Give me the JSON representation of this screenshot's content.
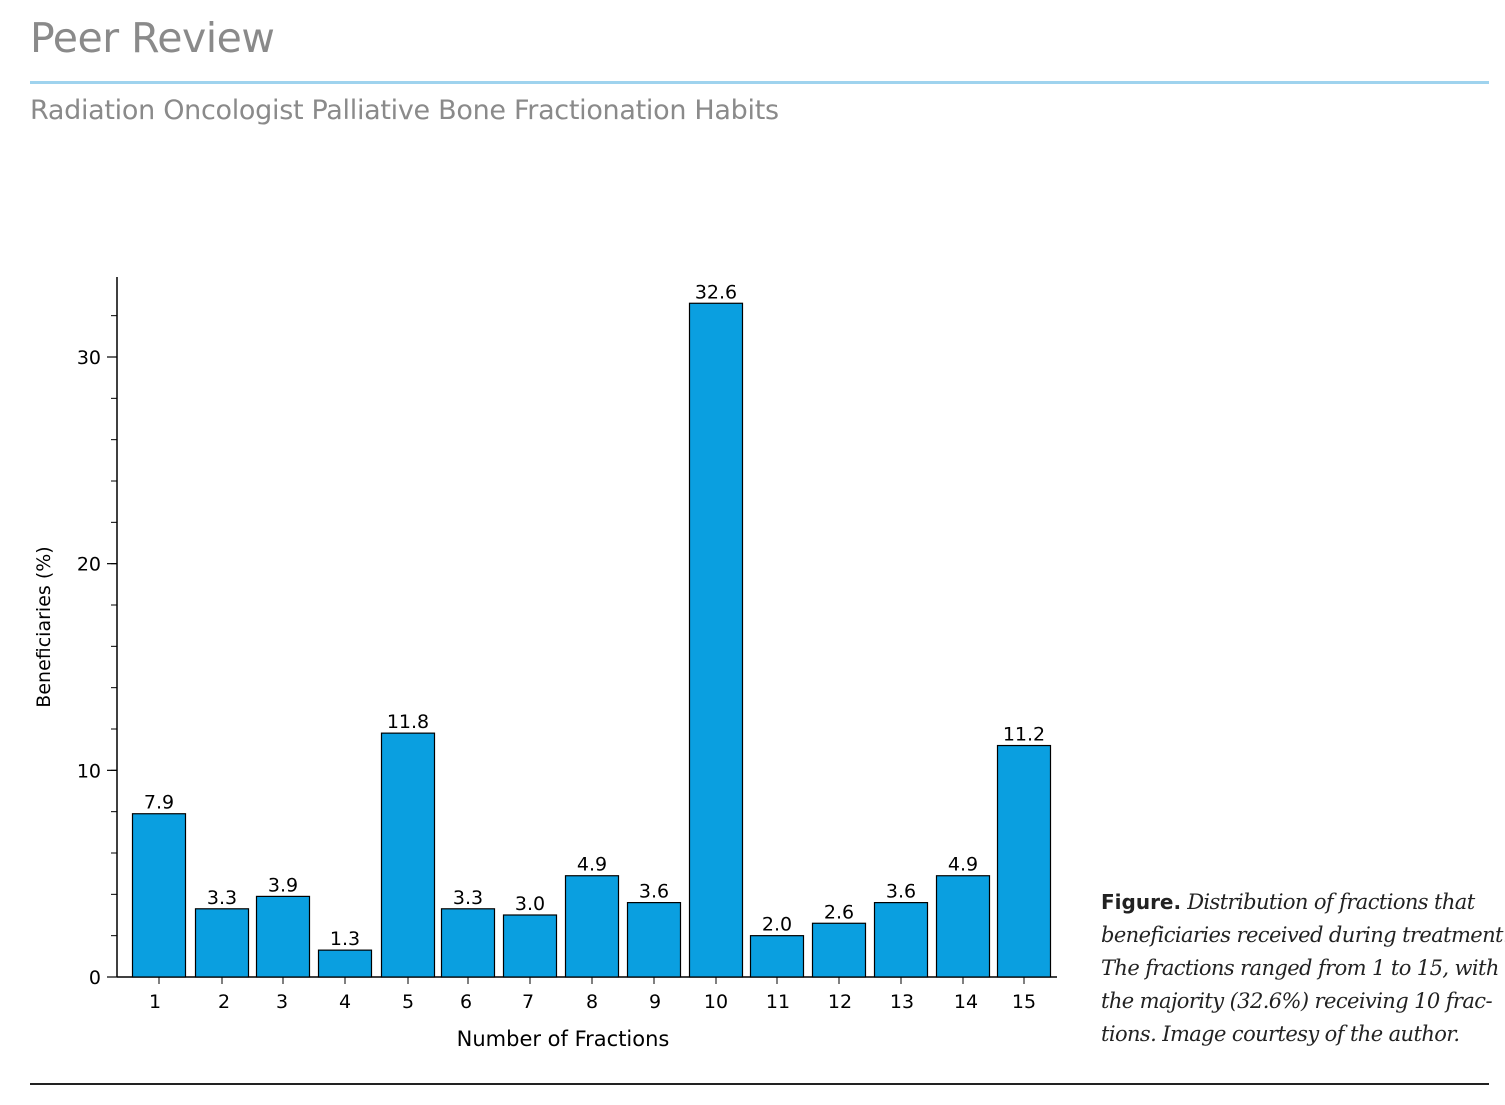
{
  "header": {
    "section_title": "Peer Review",
    "article_title": "Radiation Oncologist Palliative Bone Fractionation Habits"
  },
  "caption": {
    "lead": "Figure.",
    "lines": [
      "Distribution of fractions that",
      "beneficiaries received during treatment.",
      "The fractions ranged from 1 to 15, with",
      "the majority (32.6%) receiving 10 frac-",
      "tions. Image courtesy of the author."
    ]
  },
  "colors": {
    "bar": "#0a9fe0",
    "bar_stroke": "#000000",
    "accent_rule": "#9fd3ee"
  },
  "chart_data": {
    "type": "bar",
    "categories": [
      "1",
      "2",
      "3",
      "4",
      "5",
      "6",
      "7",
      "8",
      "9",
      "10",
      "11",
      "12",
      "13",
      "14",
      "15"
    ],
    "values": [
      7.9,
      3.3,
      3.9,
      1.3,
      11.8,
      3.3,
      3.0,
      4.9,
      3.6,
      32.6,
      2.0,
      2.6,
      3.6,
      4.9,
      11.2
    ],
    "value_labels": [
      "7.9",
      "3.3",
      "3.9",
      "1.3",
      "11.8",
      "3.3",
      "3.0",
      "4.9",
      "3.6",
      "32.6",
      "2.0",
      "2.6",
      "3.6",
      "4.9",
      "11.2"
    ],
    "xlabel": "Number of Fractions",
    "ylabel": "Beneficiaries (%)",
    "ylim": [
      0,
      34
    ],
    "yticks": [
      0,
      10,
      20,
      30
    ],
    "ytick_labels": [
      "0",
      "10",
      "20",
      "30"
    ],
    "y_minor_tick_step": 2,
    "grid": false,
    "legend": "none"
  }
}
